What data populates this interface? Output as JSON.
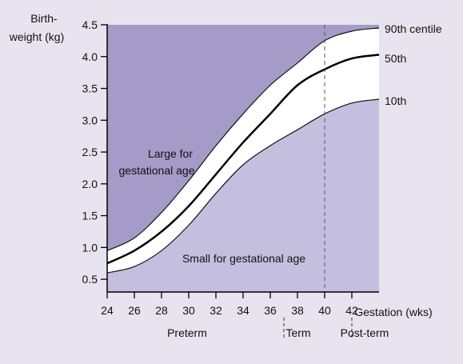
{
  "chart_data": {
    "type": "line",
    "ylabel_lines": [
      "Birth-",
      "weight (kg)"
    ],
    "xlabel": "Gestation (wks)",
    "xlim": [
      24,
      44
    ],
    "ylim": [
      0.3,
      4.5
    ],
    "x_ticks": [
      24,
      26,
      28,
      30,
      32,
      34,
      36,
      38,
      40,
      42
    ],
    "y_ticks": [
      0.5,
      1.0,
      1.5,
      2.0,
      2.5,
      3.0,
      3.5,
      4.0,
      4.5
    ],
    "y_tick_labels": [
      "0.5",
      "1.0",
      "1.5",
      "2.0",
      "2.5",
      "3.0",
      "3.5",
      "4.0",
      "4.5"
    ],
    "x": [
      24,
      26,
      28,
      30,
      32,
      34,
      36,
      38,
      40,
      42,
      44
    ],
    "series": [
      {
        "name": "90th centile",
        "values": [
          0.95,
          1.15,
          1.55,
          2.05,
          2.6,
          3.1,
          3.55,
          3.9,
          4.25,
          4.4,
          4.45
        ]
      },
      {
        "name": "50th",
        "values": [
          0.75,
          0.95,
          1.25,
          1.65,
          2.15,
          2.65,
          3.1,
          3.55,
          3.8,
          3.97,
          4.03
        ]
      },
      {
        "name": "10th",
        "values": [
          0.6,
          0.7,
          0.95,
          1.35,
          1.85,
          2.3,
          2.6,
          2.85,
          3.1,
          3.27,
          3.33
        ]
      }
    ],
    "region_labels": {
      "large_line1": "Large for",
      "large_line2": "gestational age",
      "small": "Small for gestational age"
    },
    "term_line_x": 40,
    "period_dividers": [
      37,
      42
    ],
    "periods": [
      "Preterm",
      "Term",
      "Post-term"
    ],
    "colors": {
      "background": "#e7e4ef",
      "large_region": "#a59bc8",
      "small_region": "#c4bfdf",
      "band": "#ffffff",
      "median_line": "#000000",
      "centile_line": "#111111"
    }
  }
}
